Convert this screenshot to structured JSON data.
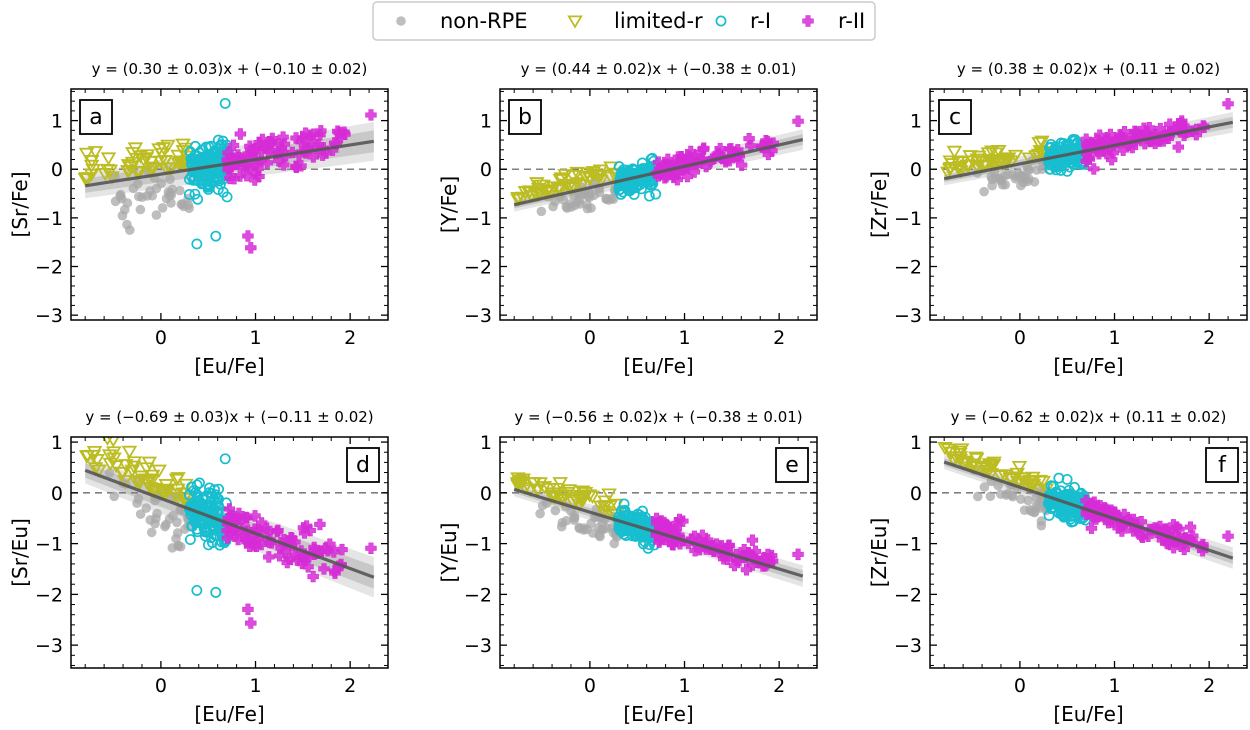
{
  "legend": {
    "location": "top-center",
    "entries": [
      {
        "key": "nonrpe",
        "label": "non-RPE",
        "marker": "filled-circle",
        "color": "#a8a8a8"
      },
      {
        "key": "limited",
        "label": "limited-r",
        "marker": "open-down-triangle",
        "color": "#bcbd22"
      },
      {
        "key": "r1",
        "label": "r-I",
        "marker": "open-circle",
        "color": "#17becf"
      },
      {
        "key": "r2",
        "label": "r-II",
        "marker": "plus",
        "color": "#d62bd6"
      }
    ]
  },
  "colors": {
    "fit_line": "#555555",
    "band_inner": "#c4c4c4",
    "band_outer": "#e2e2e2",
    "zero_line": "#808080"
  },
  "chart_data": [
    {
      "type": "scatter",
      "panel": "a",
      "equation": "y = (0.30 ± 0.03)x + (−0.10 ± 0.02)",
      "xlabel": "[Eu/Fe]",
      "ylabel": "[Sr/Fe]",
      "xlim": [
        -0.95,
        2.4
      ],
      "ylim": [
        -3.1,
        1.65
      ],
      "xticks": [
        0,
        1,
        2
      ],
      "yticks": [
        -3,
        -2,
        -1,
        0,
        1
      ],
      "xtick_labels": [
        "0",
        "1",
        "2"
      ],
      "ytick_labels": [
        "−3",
        "−2",
        "−1",
        "0",
        "1"
      ],
      "fit": {
        "slope": 0.3,
        "intercept": -0.1,
        "x": [
          -0.8,
          2.25
        ]
      },
      "band": {
        "inner": 0.18,
        "outer": 0.32
      },
      "zero_line": 0,
      "grid": false
    },
    {
      "type": "scatter",
      "panel": "b",
      "equation": "y = (0.44 ± 0.02)x + (−0.38 ± 0.01)",
      "xlabel": "[Eu/Fe]",
      "ylabel": "[Y/Fe]",
      "xlim": [
        -0.95,
        2.4
      ],
      "ylim": [
        -3.1,
        1.65
      ],
      "xticks": [
        0,
        1,
        2
      ],
      "yticks": [
        -3,
        -2,
        -1,
        0,
        1
      ],
      "xtick_labels": [
        "0",
        "1",
        "2"
      ],
      "ytick_labels": [
        "−3",
        "−2",
        "−1",
        "0",
        "1"
      ],
      "fit": {
        "slope": 0.44,
        "intercept": -0.38,
        "x": [
          -0.8,
          2.25
        ]
      },
      "band": {
        "inner": 0.09,
        "outer": 0.17
      },
      "zero_line": 0,
      "grid": false
    },
    {
      "type": "scatter",
      "panel": "c",
      "equation": "y = (0.38 ± 0.02)x + (0.11 ± 0.02)",
      "xlabel": "[Eu/Fe]",
      "ylabel": "[Zr/Fe]",
      "xlim": [
        -0.95,
        2.4
      ],
      "ylim": [
        -3.1,
        1.65
      ],
      "xticks": [
        0,
        1,
        2
      ],
      "yticks": [
        -3,
        -2,
        -1,
        0,
        1
      ],
      "xtick_labels": [
        "0",
        "1",
        "2"
      ],
      "ytick_labels": [
        "−3",
        "−2",
        "−1",
        "0",
        "1"
      ],
      "fit": {
        "slope": 0.38,
        "intercept": 0.11,
        "x": [
          -0.8,
          2.25
        ]
      },
      "band": {
        "inner": 0.09,
        "outer": 0.17
      },
      "zero_line": 0,
      "grid": false
    },
    {
      "type": "scatter",
      "panel": "d",
      "equation": "y = (−0.69 ± 0.03)x + (−0.11 ± 0.02)",
      "xlabel": "[Eu/Fe]",
      "ylabel": "[Sr/Eu]",
      "xlim": [
        -0.95,
        2.4
      ],
      "ylim": [
        -3.45,
        1.1
      ],
      "xticks": [
        0,
        1,
        2
      ],
      "yticks": [
        -3,
        -2,
        -1,
        0,
        1
      ],
      "xtick_labels": [
        "0",
        "1",
        "2"
      ],
      "ytick_labels": [
        "−3",
        "−2",
        "−1",
        "0",
        "1"
      ],
      "fit": {
        "slope": -0.69,
        "intercept": -0.11,
        "x": [
          -0.8,
          2.25
        ]
      },
      "band": {
        "inner": 0.18,
        "outer": 0.32
      },
      "zero_line": 0,
      "grid": false
    },
    {
      "type": "scatter",
      "panel": "e",
      "equation": "y = (−0.56 ± 0.02)x + (−0.38 ± 0.01)",
      "xlabel": "[Eu/Fe]",
      "ylabel": "[Y/Eu]",
      "xlim": [
        -0.95,
        2.4
      ],
      "ylim": [
        -3.45,
        1.1
      ],
      "xticks": [
        0,
        1,
        2
      ],
      "yticks": [
        -3,
        -2,
        -1,
        0,
        1
      ],
      "xtick_labels": [
        "0",
        "1",
        "2"
      ],
      "ytick_labels": [
        "−3",
        "−2",
        "−1",
        "0",
        "1"
      ],
      "fit": {
        "slope": -0.56,
        "intercept": -0.38,
        "x": [
          -0.8,
          2.25
        ]
      },
      "band": {
        "inner": 0.09,
        "outer": 0.17
      },
      "zero_line": 0,
      "grid": false
    },
    {
      "type": "scatter",
      "panel": "f",
      "equation": "y = (−0.62 ± 0.02)x + (0.11 ± 0.02)",
      "xlabel": "[Eu/Fe]",
      "ylabel": "[Zr/Eu]",
      "xlim": [
        -0.95,
        2.4
      ],
      "ylim": [
        -3.45,
        1.1
      ],
      "xticks": [
        0,
        1,
        2
      ],
      "yticks": [
        -3,
        -2,
        -1,
        0,
        1
      ],
      "xtick_labels": [
        "0",
        "1",
        "2"
      ],
      "ytick_labels": [
        "−3",
        "−2",
        "−1",
        "0",
        "1"
      ],
      "fit": {
        "slope": -0.62,
        "intercept": 0.11,
        "x": [
          -0.8,
          2.25
        ]
      },
      "band": {
        "inner": 0.09,
        "outer": 0.17
      },
      "zero_line": 0,
      "grid": false
    }
  ]
}
